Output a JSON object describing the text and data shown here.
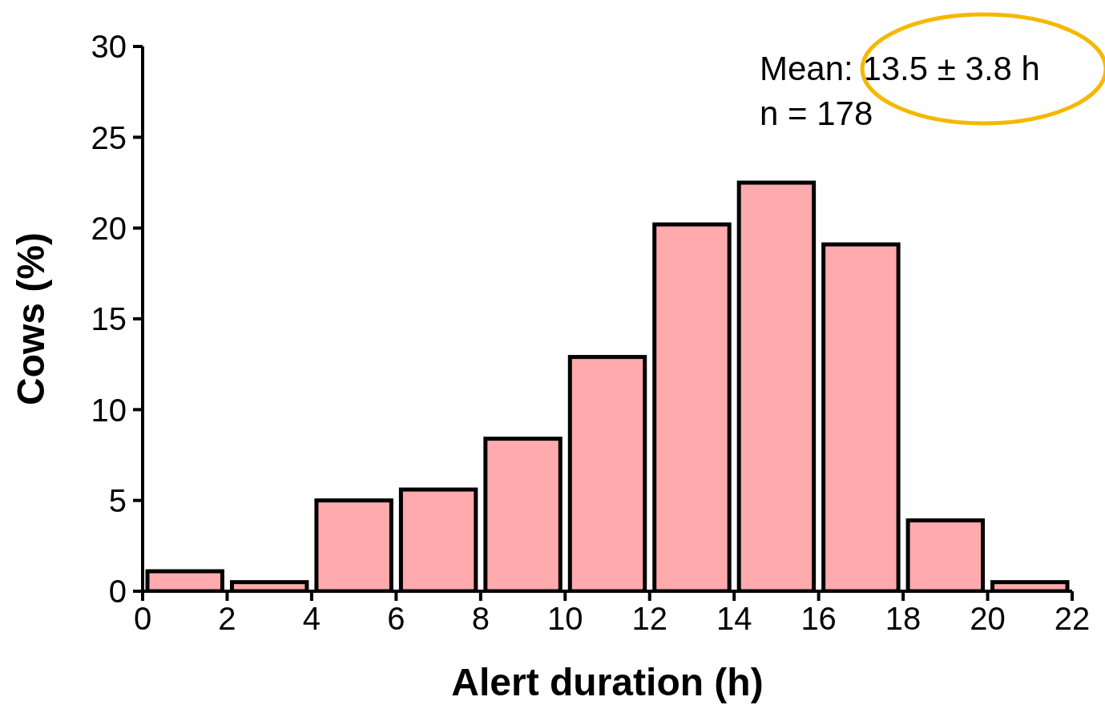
{
  "chart_data": {
    "type": "histogram",
    "xlabel": "Alert duration (h)",
    "ylabel": "Cows (%)",
    "bins": [
      0,
      2,
      4,
      6,
      8,
      10,
      12,
      14,
      16,
      18,
      20,
      22
    ],
    "values": [
      1.1,
      0.5,
      5.0,
      5.6,
      8.4,
      12.9,
      20.2,
      22.5,
      19.1,
      3.9,
      0.5
    ],
    "color": "#ffaaad",
    "xlim": [
      0,
      22
    ],
    "xticks": [
      0,
      2,
      4,
      6,
      8,
      10,
      12,
      14,
      16,
      18,
      20,
      22
    ],
    "ylim": [
      0,
      30
    ],
    "yticks": [
      0,
      5,
      10,
      15,
      20,
      25,
      30
    ],
    "annotations": [
      "Mean: 13.5 ± 3.8 h",
      "n = 178"
    ]
  }
}
